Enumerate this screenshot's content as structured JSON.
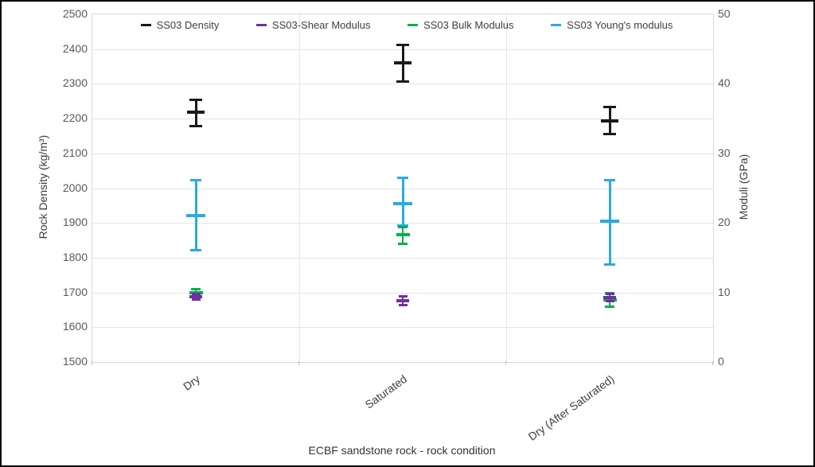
{
  "chart_data": {
    "type": "errorbar",
    "title": "",
    "xlabel": "ECBF sandstone rock - rock condition",
    "categories": [
      "Dry",
      "Saturated",
      "Dry (After Saturated)"
    ],
    "left_axis": {
      "label": "Rock Density (kg/m³)",
      "min": 1500,
      "max": 2500,
      "ticks": [
        1500,
        1600,
        1700,
        1800,
        1900,
        2000,
        2100,
        2200,
        2300,
        2400,
        2500
      ]
    },
    "right_axis": {
      "label": "Moduli (GPa)",
      "min": 0,
      "max": 50,
      "ticks": [
        0,
        10,
        20,
        30,
        40,
        50
      ]
    },
    "grid": "horizontal-and-category-separators",
    "legend_position": "top",
    "series": [
      {
        "name": "SS03 Density",
        "axis": "left",
        "units": "kg/m3",
        "color": "#1a1a1a",
        "points": [
          {
            "category": "Dry",
            "mean": 2218,
            "lo": 2178,
            "hi": 2255
          },
          {
            "category": "Saturated",
            "mean": 2360,
            "lo": 2307,
            "hi": 2413
          },
          {
            "category": "Dry (After Saturated)",
            "mean": 2194,
            "lo": 2155,
            "hi": 2233
          }
        ]
      },
      {
        "name": "SS03-Shear Modulus",
        "axis": "right",
        "units": "GPa",
        "color": "#7030a0",
        "points": [
          {
            "category": "Dry",
            "mean": 9.4,
            "lo": 9.0,
            "hi": 9.8
          },
          {
            "category": "Saturated",
            "mean": 8.8,
            "lo": 8.2,
            "hi": 9.4
          },
          {
            "category": "Dry (After Saturated)",
            "mean": 9.3,
            "lo": 8.7,
            "hi": 9.8
          }
        ]
      },
      {
        "name": "SS03 Bulk Modulus",
        "axis": "right",
        "units": "GPa",
        "color": "#00b050",
        "points": [
          {
            "category": "Dry",
            "mean": 9.9,
            "lo": 9.3,
            "hi": 10.5
          },
          {
            "category": "Saturated",
            "mean": 18.3,
            "lo": 17.0,
            "hi": 19.4
          },
          {
            "category": "Dry (After Saturated)",
            "mean": 8.9,
            "lo": 7.9,
            "hi": 9.9
          }
        ]
      },
      {
        "name": "SS03 Young's modulus",
        "axis": "right",
        "units": "GPa",
        "color": "#29abe2",
        "points": [
          {
            "category": "Dry",
            "mean": 21.1,
            "lo": 16.1,
            "hi": 26.2
          },
          {
            "category": "Saturated",
            "mean": 22.8,
            "lo": 19.6,
            "hi": 26.5
          },
          {
            "category": "Dry (After Saturated)",
            "mean": 20.2,
            "lo": 14.0,
            "hi": 26.2
          }
        ]
      }
    ]
  }
}
